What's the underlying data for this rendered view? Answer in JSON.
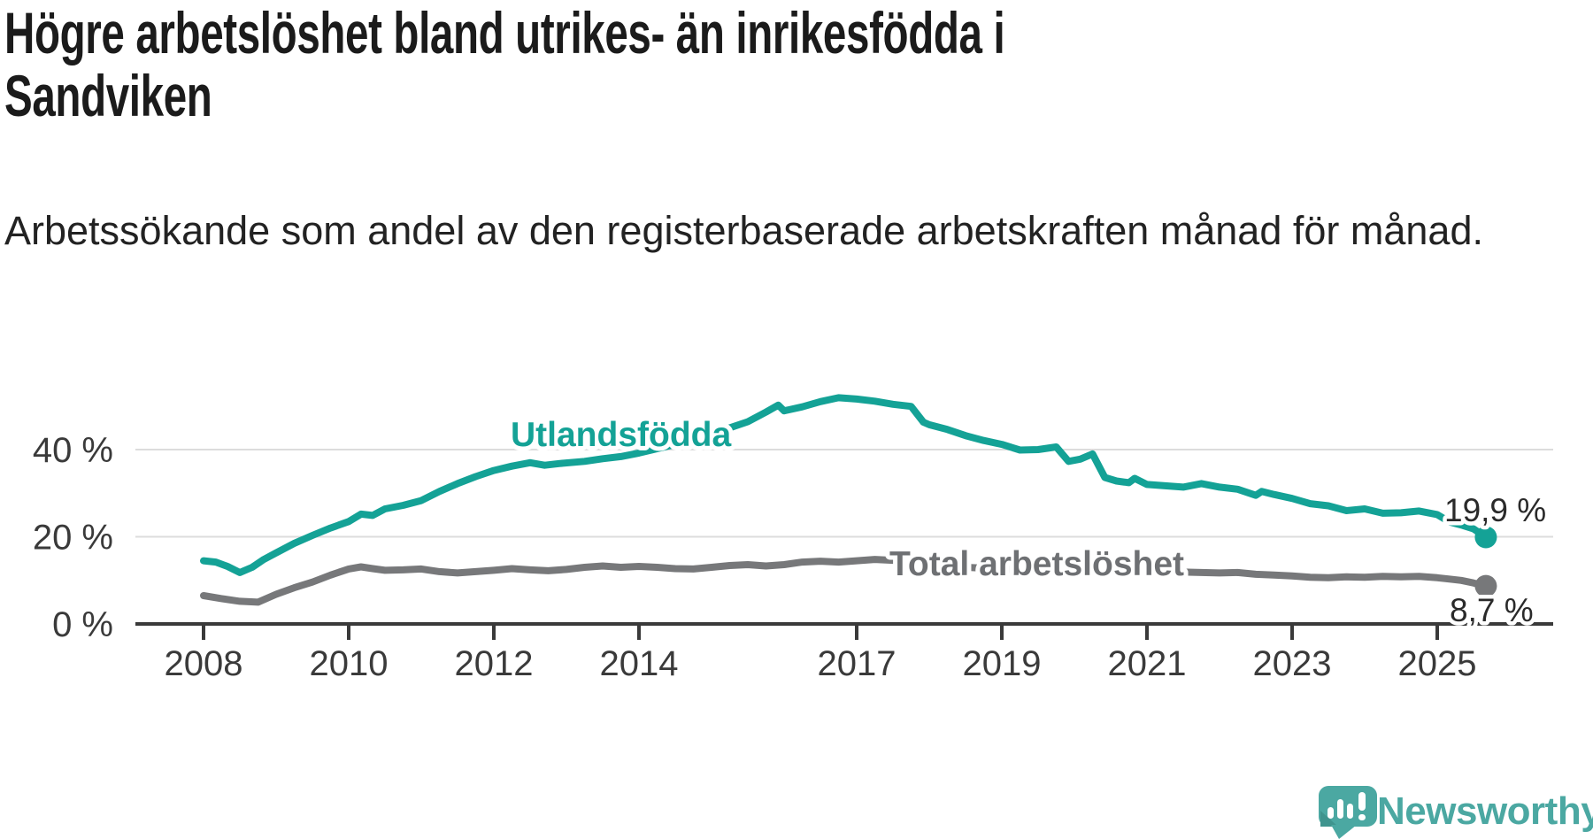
{
  "header": {
    "title": "Högre arbetslöshet bland utrikes- än inrikesfödda i Sandviken",
    "subtitle": "Arbetssökande som andel av den registerbaserade arbetskraften månad för månad."
  },
  "chart_data": {
    "type": "line",
    "title": "Högre arbetslöshet bland utrikes- än inrikesfödda i Sandviken",
    "subtitle": "Arbetssökande som andel av den registerbaserade arbetskraften månad för månad.",
    "unit": "percent of registered labour force",
    "x_unit": "year (decimal fraction = month)",
    "xlim": [
      2007.1,
      2026.6
    ],
    "ylim": [
      0,
      56
    ],
    "grid": "horizontal",
    "legend_position": "inline-labels",
    "y_ticks": [
      {
        "value": 0,
        "label": "0 %"
      },
      {
        "value": 20,
        "label": "20 %"
      },
      {
        "value": 40,
        "label": "40 %"
      }
    ],
    "x_ticks": [
      {
        "value": 2008,
        "label": "2008"
      },
      {
        "value": 2010,
        "label": "2010"
      },
      {
        "value": 2012,
        "label": "2012"
      },
      {
        "value": 2014,
        "label": "2014"
      },
      {
        "value": 2017,
        "label": "2017"
      },
      {
        "value": 2019,
        "label": "2019"
      },
      {
        "value": 2021,
        "label": "2021"
      },
      {
        "value": 2023,
        "label": "2023"
      },
      {
        "value": 2025,
        "label": "2025"
      }
    ],
    "series": [
      {
        "id": "utlandsfodda",
        "name": "Utlandsfödda",
        "color": "#14a296",
        "end_label": "19,9 %",
        "end_value": 19.9,
        "points": [
          [
            2008.0,
            14.5
          ],
          [
            2008.17,
            14.2
          ],
          [
            2008.33,
            13.2
          ],
          [
            2008.5,
            11.8
          ],
          [
            2008.67,
            13.0
          ],
          [
            2008.83,
            14.8
          ],
          [
            2009.0,
            16.3
          ],
          [
            2009.25,
            18.5
          ],
          [
            2009.5,
            20.3
          ],
          [
            2009.75,
            22.0
          ],
          [
            2010.0,
            23.5
          ],
          [
            2010.17,
            25.2
          ],
          [
            2010.33,
            24.9
          ],
          [
            2010.5,
            26.4
          ],
          [
            2010.75,
            27.2
          ],
          [
            2011.0,
            28.3
          ],
          [
            2011.25,
            30.4
          ],
          [
            2011.5,
            32.2
          ],
          [
            2011.75,
            33.8
          ],
          [
            2012.0,
            35.2
          ],
          [
            2012.25,
            36.2
          ],
          [
            2012.5,
            37.0
          ],
          [
            2012.7,
            36.4
          ],
          [
            2012.9,
            36.8
          ],
          [
            2013.25,
            37.3
          ],
          [
            2013.5,
            37.9
          ],
          [
            2013.75,
            38.4
          ],
          [
            2014.0,
            39.2
          ],
          [
            2014.25,
            40.2
          ],
          [
            2014.5,
            41.2
          ],
          [
            2014.75,
            42.4
          ],
          [
            2015.0,
            43.7
          ],
          [
            2015.25,
            45.0
          ],
          [
            2015.5,
            46.4
          ],
          [
            2015.75,
            48.6
          ],
          [
            2015.92,
            50.2
          ],
          [
            2016.0,
            48.9
          ],
          [
            2016.25,
            49.8
          ],
          [
            2016.5,
            51.0
          ],
          [
            2016.75,
            51.9
          ],
          [
            2017.0,
            51.6
          ],
          [
            2017.25,
            51.1
          ],
          [
            2017.5,
            50.4
          ],
          [
            2017.75,
            49.9
          ],
          [
            2017.92,
            46.3
          ],
          [
            2018.0,
            45.7
          ],
          [
            2018.25,
            44.6
          ],
          [
            2018.5,
            43.2
          ],
          [
            2018.75,
            42.1
          ],
          [
            2019.0,
            41.2
          ],
          [
            2019.25,
            39.9
          ],
          [
            2019.5,
            40.0
          ],
          [
            2019.75,
            40.6
          ],
          [
            2019.92,
            37.3
          ],
          [
            2020.08,
            37.8
          ],
          [
            2020.25,
            39.0
          ],
          [
            2020.42,
            33.6
          ],
          [
            2020.58,
            32.8
          ],
          [
            2020.75,
            32.4
          ],
          [
            2020.83,
            33.4
          ],
          [
            2021.0,
            32.0
          ],
          [
            2021.25,
            31.7
          ],
          [
            2021.5,
            31.4
          ],
          [
            2021.75,
            32.2
          ],
          [
            2022.0,
            31.4
          ],
          [
            2022.25,
            30.9
          ],
          [
            2022.5,
            29.5
          ],
          [
            2022.58,
            30.4
          ],
          [
            2022.75,
            29.7
          ],
          [
            2023.0,
            28.8
          ],
          [
            2023.25,
            27.6
          ],
          [
            2023.5,
            27.1
          ],
          [
            2023.75,
            26.0
          ],
          [
            2024.0,
            26.4
          ],
          [
            2024.25,
            25.4
          ],
          [
            2024.5,
            25.5
          ],
          [
            2024.75,
            25.9
          ],
          [
            2025.0,
            25.1
          ],
          [
            2025.17,
            23.4
          ],
          [
            2025.33,
            22.7
          ],
          [
            2025.5,
            21.8
          ],
          [
            2025.67,
            19.9
          ]
        ]
      },
      {
        "id": "total-arbetsloshet",
        "name": "Total arbetslöshet",
        "color": "#77787a",
        "end_label": "8,7 %",
        "end_value": 8.7,
        "points": [
          [
            2008.0,
            6.5
          ],
          [
            2008.25,
            5.8
          ],
          [
            2008.5,
            5.2
          ],
          [
            2008.75,
            5.0
          ],
          [
            2009.0,
            6.8
          ],
          [
            2009.25,
            8.3
          ],
          [
            2009.5,
            9.6
          ],
          [
            2009.75,
            11.2
          ],
          [
            2010.0,
            12.6
          ],
          [
            2010.17,
            13.1
          ],
          [
            2010.33,
            12.7
          ],
          [
            2010.5,
            12.3
          ],
          [
            2010.75,
            12.4
          ],
          [
            2011.0,
            12.6
          ],
          [
            2011.25,
            12.0
          ],
          [
            2011.5,
            11.7
          ],
          [
            2011.75,
            12.0
          ],
          [
            2012.0,
            12.3
          ],
          [
            2012.25,
            12.7
          ],
          [
            2012.5,
            12.4
          ],
          [
            2012.75,
            12.2
          ],
          [
            2013.0,
            12.5
          ],
          [
            2013.25,
            13.0
          ],
          [
            2013.5,
            13.3
          ],
          [
            2013.75,
            13.0
          ],
          [
            2014.0,
            13.2
          ],
          [
            2014.25,
            13.0
          ],
          [
            2014.5,
            12.7
          ],
          [
            2014.75,
            12.6
          ],
          [
            2015.0,
            13.0
          ],
          [
            2015.25,
            13.4
          ],
          [
            2015.5,
            13.6
          ],
          [
            2015.75,
            13.3
          ],
          [
            2016.0,
            13.6
          ],
          [
            2016.25,
            14.2
          ],
          [
            2016.5,
            14.4
          ],
          [
            2016.75,
            14.2
          ],
          [
            2017.0,
            14.5
          ],
          [
            2017.25,
            14.8
          ],
          [
            2017.5,
            14.6
          ],
          [
            2017.75,
            14.0
          ],
          [
            2018.0,
            13.6
          ],
          [
            2018.5,
            13.0
          ],
          [
            2019.0,
            12.6
          ],
          [
            2019.5,
            12.2
          ],
          [
            2020.0,
            12.8
          ],
          [
            2020.5,
            13.0
          ],
          [
            2021.0,
            12.3
          ],
          [
            2021.5,
            11.9
          ],
          [
            2022.0,
            11.7
          ],
          [
            2022.25,
            11.8
          ],
          [
            2022.5,
            11.4
          ],
          [
            2022.75,
            11.2
          ],
          [
            2023.0,
            11.0
          ],
          [
            2023.25,
            10.7
          ],
          [
            2023.5,
            10.6
          ],
          [
            2023.75,
            10.8
          ],
          [
            2024.0,
            10.7
          ],
          [
            2024.25,
            10.9
          ],
          [
            2024.5,
            10.8
          ],
          [
            2024.75,
            10.9
          ],
          [
            2025.0,
            10.6
          ],
          [
            2025.17,
            10.3
          ],
          [
            2025.33,
            10.0
          ],
          [
            2025.5,
            9.4
          ],
          [
            2025.67,
            8.7
          ]
        ]
      }
    ],
    "colors": {
      "grid": "#dcdcdc",
      "axis": "#3a3a3a",
      "tick_text": "#3a3a3a",
      "value_label_text": "#2a2a2a"
    }
  },
  "footer": {
    "brand": "Newsworthy",
    "brand_color": "#4ba8a2",
    "logo_icon": "newsworthy-speech-bubble-barchart-icon"
  }
}
